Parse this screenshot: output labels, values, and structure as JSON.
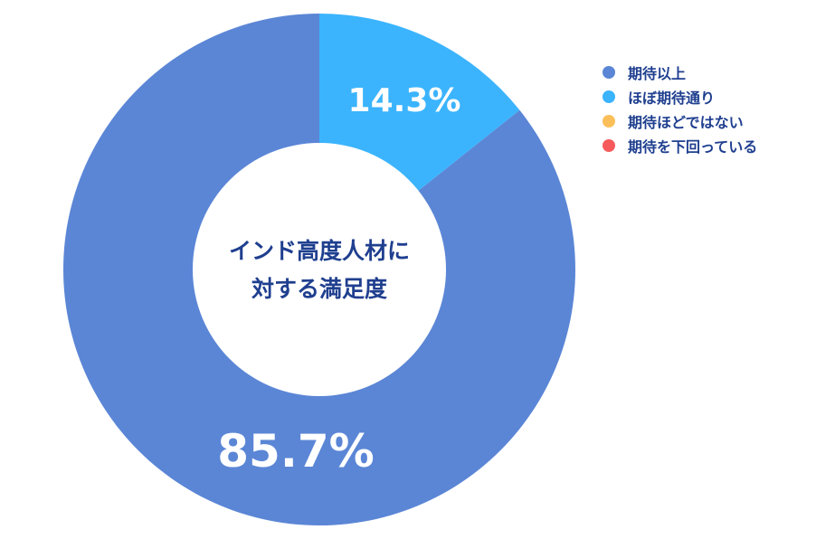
{
  "chart_data": {
    "type": "pie",
    "center_label": [
      "インド高度人材に",
      "対する満足度"
    ],
    "series": [
      {
        "name": "期待以上",
        "value": 85.7,
        "label": "85.7%",
        "color": "#5b86d6"
      },
      {
        "name": "ほぼ期待通り",
        "value": 14.3,
        "label": "14.3%",
        "color": "#3bb4fd"
      },
      {
        "name": "期待ほどではない",
        "value": 0,
        "label": "",
        "color": "#fbbf5a"
      },
      {
        "name": "期待を下回っている",
        "value": 0,
        "label": "",
        "color": "#f65a5a"
      }
    ],
    "legend_position": "top-right"
  }
}
